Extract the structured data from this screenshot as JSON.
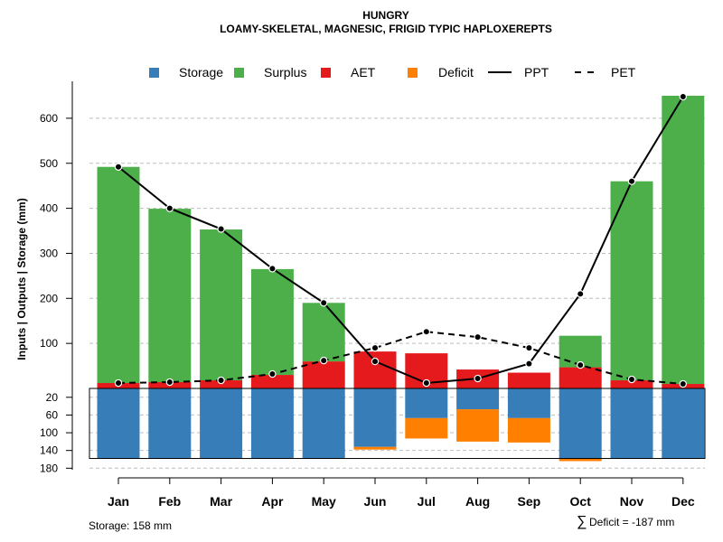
{
  "chart_data": {
    "type": "bar",
    "title": "HUNGRY",
    "subtitle": "LOAMY-SKELETAL, MAGNESIC, FRIGID TYPIC HAPLOXEREPTS",
    "ylabel": "Inputs | Outputs | Storage    (mm)",
    "categories": [
      "Jan",
      "Feb",
      "Mar",
      "Apr",
      "May",
      "Jun",
      "Jul",
      "Aug",
      "Sep",
      "Oct",
      "Nov",
      "Dec"
    ],
    "upper_ylim": [
      0,
      650
    ],
    "upper_ticks": [
      100,
      200,
      300,
      400,
      500,
      600
    ],
    "lower_ylim": [
      0,
      180
    ],
    "lower_ticks": [
      20,
      60,
      100,
      140,
      180
    ],
    "series": [
      {
        "name": "AET",
        "values": [
          12,
          14,
          18,
          30,
          60,
          82,
          78,
          42,
          35,
          47,
          18,
          10
        ]
      },
      {
        "name": "Surplus",
        "values": [
          480,
          385,
          335,
          235,
          130,
          0,
          0,
          0,
          0,
          70,
          442,
          640
        ]
      },
      {
        "name": "PPT",
        "values": [
          492,
          400,
          354,
          266,
          190,
          60,
          12,
          22,
          55,
          210,
          460,
          648
        ]
      },
      {
        "name": "PET",
        "values": [
          12,
          14,
          18,
          32,
          62,
          90,
          126,
          114,
          90,
          52,
          20,
          10
        ]
      },
      {
        "name": "Storage",
        "values": [
          158,
          158,
          158,
          158,
          158,
          132,
          67,
          47,
          67,
          158,
          158,
          158
        ]
      },
      {
        "name": "Deficit",
        "values": [
          0,
          0,
          0,
          0,
          0,
          6,
          46,
          73,
          55,
          6,
          0,
          0
        ]
      }
    ],
    "legend": {
      "position": "top",
      "items": [
        {
          "label": "Storage",
          "kind": "square",
          "color": "#377EB8"
        },
        {
          "label": "Surplus",
          "kind": "square",
          "color": "#4DAF4A"
        },
        {
          "label": "AET",
          "kind": "square",
          "color": "#E41A1C"
        },
        {
          "label": "Deficit",
          "kind": "square",
          "color": "#FF7F00"
        },
        {
          "label": "PPT",
          "kind": "solid-line",
          "color": "#000000"
        },
        {
          "label": "PET",
          "kind": "dashed-line",
          "color": "#000000"
        }
      ]
    },
    "footnotes": {
      "storage": "Storage: 158 mm",
      "deficit_symbol": "∑",
      "deficit": "Deficit = -187 mm"
    }
  },
  "colors": {
    "storage": "#377EB8",
    "surplus": "#4DAF4A",
    "aet": "#E41A1C",
    "deficit": "#FF7F00",
    "line": "#000000",
    "grid": "#BEBEBE"
  }
}
